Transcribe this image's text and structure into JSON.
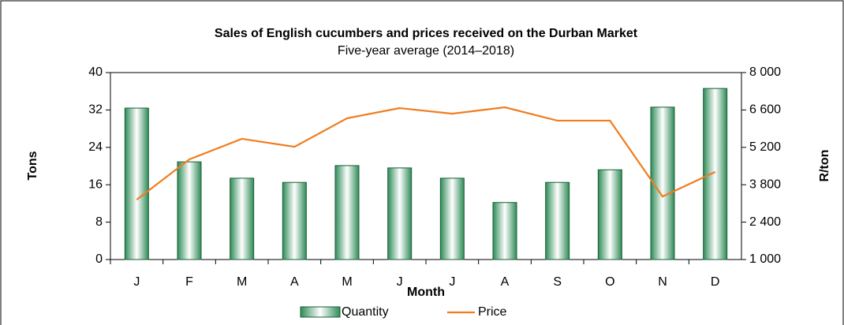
{
  "chart_data": {
    "type": "bar",
    "title": "Sales of English cucumbers and prices received on the Durban Market",
    "subtitle": "Five-year average (2014–2018)",
    "x_label": "Month",
    "y_label": "Tons",
    "y2_label": "R/ton",
    "categories": [
      "J",
      "F",
      "M",
      "A",
      "M",
      "J",
      "J",
      "A",
      "S",
      "O",
      "N",
      "D"
    ],
    "series": [
      {
        "name": "Quantity",
        "type": "bar",
        "color": "#2e8b57",
        "values": [
          32.4,
          20.9,
          17.4,
          16.5,
          20.1,
          19.6,
          17.4,
          12.2,
          16.5,
          19.2,
          32.6,
          36.6
        ]
      },
      {
        "name": "Price",
        "type": "line",
        "axis": "y2",
        "color": "#f07c1e",
        "values": [
          3240,
          4750,
          5520,
          5220,
          6290,
          6670,
          6460,
          6700,
          6200,
          6200,
          3360,
          4280
        ]
      }
    ],
    "ylim": [
      0,
      40
    ],
    "yticks": [
      0,
      8,
      16,
      24,
      32,
      40
    ],
    "y2lim": [
      1000,
      8000
    ],
    "y2ticks": [
      {
        "value": 1000,
        "label": "1 000"
      },
      {
        "value": 2400,
        "label": "2 400"
      },
      {
        "value": 3800,
        "label": "3 800"
      },
      {
        "value": 5200,
        "label": "5 200"
      },
      {
        "value": 6600,
        "label": "6 600"
      },
      {
        "value": 8000,
        "label": "8 000"
      }
    ],
    "legend": "bottom"
  }
}
